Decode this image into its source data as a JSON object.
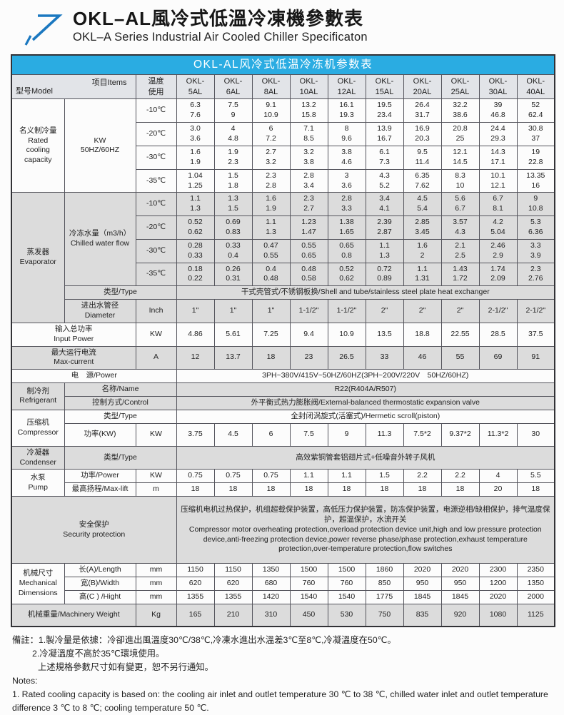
{
  "header": {
    "title_cn": "OKL–AL風冷式低溫冷凍機參數表",
    "title_en": "OKL–A Series Industrial Air Cooled Chiller Specificaton"
  },
  "colors": {
    "title_bar": "#2aace2",
    "header_bg": "#e2e4e8",
    "row_gray": "#dcdcdc",
    "arrow_blue": "#1b78c0"
  },
  "table": {
    "rows": [
      {
        "c": "title-row",
        "cells": [
          {
            "t": "OKL-AL风冷式低温冷冻机参数表",
            "cs": 13,
            "n": "table-title"
          }
        ]
      },
      {
        "c": "head-row",
        "cells": [
          {
            "t": "型号Model\n项目Items",
            "cs": 2,
            "c": "corner",
            "n": "corner-cell"
          },
          {
            "t": "温度\n使用",
            "n": "temp-use-header"
          },
          {
            "t": "OKL-\n5AL",
            "n": "model-header"
          },
          {
            "t": "OKL-\n6AL",
            "n": "model-header"
          },
          {
            "t": "OKL-\n8AL",
            "n": "model-header"
          },
          {
            "t": "OKL-\n10AL",
            "n": "model-header"
          },
          {
            "t": "OKL-\n12AL",
            "n": "model-header"
          },
          {
            "t": "OKL-\n15AL",
            "n": "model-header"
          },
          {
            "t": "OKL-\n20AL",
            "n": "model-header"
          },
          {
            "t": "OKL-\n25AL",
            "n": "model-header"
          },
          {
            "t": "OKL-\n30AL",
            "n": "model-header"
          },
          {
            "t": "OKL-\n40AL",
            "n": "model-header"
          }
        ]
      },
      {
        "c": "",
        "cells": [
          {
            "t": "名义制冷量\nRated\ncooling\ncapacity",
            "rs": 4,
            "n": "group-label"
          },
          {
            "t": "KW\n50HZ/60HZ",
            "rs": 4,
            "n": "item-label"
          },
          {
            "t": "-10℃",
            "n": "temp-label"
          },
          {
            "t": "6.3\n7.6"
          },
          {
            "t": "7.5\n9"
          },
          {
            "t": "9.1\n10.9"
          },
          {
            "t": "13.2\n15.8"
          },
          {
            "t": "16.1\n19.3"
          },
          {
            "t": "19.5\n23.4"
          },
          {
            "t": "26.4\n31.7"
          },
          {
            "t": "32.2\n38.6"
          },
          {
            "t": "39\n46.8"
          },
          {
            "t": "52\n62.4"
          }
        ]
      },
      {
        "c": "",
        "cells": [
          {
            "t": "-20℃",
            "n": "temp-label"
          },
          {
            "t": "3.0\n3.6"
          },
          {
            "t": "4\n4.8"
          },
          {
            "t": "6\n7.2"
          },
          {
            "t": "7.1\n8.5"
          },
          {
            "t": "8\n9.6"
          },
          {
            "t": "13.9\n16.7"
          },
          {
            "t": "16.9\n20.3"
          },
          {
            "t": "20.8\n25"
          },
          {
            "t": "24.4\n29.3"
          },
          {
            "t": "30.8\n37"
          }
        ]
      },
      {
        "c": "",
        "cells": [
          {
            "t": "-30℃",
            "n": "temp-label"
          },
          {
            "t": "1.6\n1.9"
          },
          {
            "t": "1.9\n2.3"
          },
          {
            "t": "2.7\n3.2"
          },
          {
            "t": "3.2\n3.8"
          },
          {
            "t": "3.8\n4.6"
          },
          {
            "t": "6.1\n7.3"
          },
          {
            "t": "9.5\n11.4"
          },
          {
            "t": "12.1\n14.5"
          },
          {
            "t": "14.3\n17.1"
          },
          {
            "t": "19\n22.8"
          }
        ]
      },
      {
        "c": "",
        "cells": [
          {
            "t": "-35℃",
            "n": "temp-label"
          },
          {
            "t": "1.04\n1.25"
          },
          {
            "t": "1.5\n1.8"
          },
          {
            "t": "2.3\n2.8"
          },
          {
            "t": "2.8\n3.4"
          },
          {
            "t": "3\n3.6"
          },
          {
            "t": "4.3\n5.2"
          },
          {
            "t": "6.35\n7.62"
          },
          {
            "t": "8.3\n10"
          },
          {
            "t": "10.1\n12.1"
          },
          {
            "t": "13.35\n16"
          }
        ]
      },
      {
        "c": "gray",
        "cells": [
          {
            "t": "蒸发器\nEvaporator",
            "rs": 6,
            "n": "group-label"
          },
          {
            "t": "冷冻水量（m3/h）\nChilled water flow",
            "rs": 4,
            "n": "item-label"
          },
          {
            "t": "-10℃",
            "n": "temp-label"
          },
          {
            "t": "1.1\n1.3"
          },
          {
            "t": "1.3\n1.5"
          },
          {
            "t": "1.6\n1.9"
          },
          {
            "t": "2.3\n2.7"
          },
          {
            "t": "2.8\n3.3"
          },
          {
            "t": "3.4\n4.1"
          },
          {
            "t": "4.5\n5.4"
          },
          {
            "t": "5.6\n6.7"
          },
          {
            "t": "6.7\n8.1"
          },
          {
            "t": "9\n10.8"
          }
        ]
      },
      {
        "c": "gray",
        "cells": [
          {
            "t": "-20℃",
            "n": "temp-label"
          },
          {
            "t": "0.52\n0.62"
          },
          {
            "t": "0.69\n0.83"
          },
          {
            "t": "1.1\n1.3"
          },
          {
            "t": "1.23\n1.47"
          },
          {
            "t": "1.38\n1.65"
          },
          {
            "t": "2.39\n2.87"
          },
          {
            "t": "2.85\n3.45"
          },
          {
            "t": "3.57\n4.3"
          },
          {
            "t": "4.2\n5.04"
          },
          {
            "t": "5.3\n6.36"
          }
        ]
      },
      {
        "c": "gray",
        "cells": [
          {
            "t": "-30℃",
            "n": "temp-label"
          },
          {
            "t": "0.28\n0.33"
          },
          {
            "t": "0.33\n0.4"
          },
          {
            "t": "0.47\n0.55"
          },
          {
            "t": "0.55\n0.65"
          },
          {
            "t": "0.65\n0.8"
          },
          {
            "t": "1.1\n1.3"
          },
          {
            "t": "1.6\n2"
          },
          {
            "t": "2.1\n2.5"
          },
          {
            "t": "2.46\n2.9"
          },
          {
            "t": "3.3\n3.9"
          }
        ]
      },
      {
        "c": "gray",
        "cells": [
          {
            "t": "-35℃",
            "n": "temp-label"
          },
          {
            "t": "0.18\n0.22"
          },
          {
            "t": "0.26\n0.31"
          },
          {
            "t": "0.4\n0.48"
          },
          {
            "t": "0.48\n0.58"
          },
          {
            "t": "0.52\n0.62"
          },
          {
            "t": "0.72\n0.89"
          },
          {
            "t": "1.1\n1.31"
          },
          {
            "t": "1.43\n1.72"
          },
          {
            "t": "1.74\n2.09"
          },
          {
            "t": "2.3\n2.76"
          }
        ]
      },
      {
        "c": "gray",
        "cells": [
          {
            "t": "类型/Type",
            "cs": 2,
            "n": "item-label"
          },
          {
            "t": "干式壳管式/不锈钢板换/Shell and tube/stainless steel plate heat exchanger",
            "cs": 10,
            "n": "span-value"
          }
        ]
      },
      {
        "c": "gray tall",
        "cells": [
          {
            "t": "进出水管径\nDiameter",
            "n": "item-label"
          },
          {
            "t": "Inch",
            "n": "unit-label"
          },
          {
            "t": "1\""
          },
          {
            "t": "1\""
          },
          {
            "t": "1\""
          },
          {
            "t": "1-1/2\""
          },
          {
            "t": "1-1/2\""
          },
          {
            "t": "2\""
          },
          {
            "t": "2\""
          },
          {
            "t": "2\""
          },
          {
            "t": "2-1/2\""
          },
          {
            "t": "2-1/2\""
          }
        ]
      },
      {
        "c": "tall",
        "cells": [
          {
            "t": "输入总功率\nInput Power",
            "cs": 2,
            "n": "item-label"
          },
          {
            "t": "KW",
            "n": "unit-label"
          },
          {
            "t": "4.86"
          },
          {
            "t": "5.61"
          },
          {
            "t": "7.25"
          },
          {
            "t": "9.4"
          },
          {
            "t": "10.9"
          },
          {
            "t": "13.5"
          },
          {
            "t": "18.8"
          },
          {
            "t": "22.55"
          },
          {
            "t": "28.5"
          },
          {
            "t": "37.5"
          }
        ]
      },
      {
        "c": "gray tall",
        "cells": [
          {
            "t": "最大运行电流\nMax-current",
            "cs": 2,
            "n": "item-label"
          },
          {
            "t": "A",
            "n": "unit-label"
          },
          {
            "t": "12"
          },
          {
            "t": "13.7"
          },
          {
            "t": "18"
          },
          {
            "t": "23"
          },
          {
            "t": "26.5"
          },
          {
            "t": "33"
          },
          {
            "t": "46"
          },
          {
            "t": "55"
          },
          {
            "t": "69"
          },
          {
            "t": "91"
          }
        ]
      },
      {
        "c": "",
        "cells": [
          {
            "t": "电　源/Power",
            "cs": 3,
            "n": "item-label"
          },
          {
            "t": "3PH~380V/415V~50HZ/60HZ(3PH~200V/220V　50HZ/60HZ)",
            "cs": 10,
            "n": "span-value"
          }
        ]
      },
      {
        "c": "gray",
        "cells": [
          {
            "t": "制冷剂\nRefrigerant",
            "rs": 2,
            "n": "group-label"
          },
          {
            "t": "名称/Name",
            "cs": 2,
            "n": "item-label"
          },
          {
            "t": "R22(R404A/R507)",
            "cs": 10,
            "n": "span-value"
          }
        ]
      },
      {
        "c": "gray",
        "cells": [
          {
            "t": "控制方式/Control",
            "cs": 2,
            "n": "item-label"
          },
          {
            "t": "外平衡式热力膨胀阀/External-balanced thermostatic expansion valve",
            "cs": 10,
            "n": "span-value"
          }
        ]
      },
      {
        "c": "",
        "cells": [
          {
            "t": "压缩机\nCompressor",
            "rs": 2,
            "n": "group-label"
          },
          {
            "t": "类型/Type",
            "cs": 2,
            "n": "item-label"
          },
          {
            "t": "全封闭涡旋式(活塞式)/Hermetic scroll(piston)",
            "cs": 10,
            "n": "span-value"
          }
        ]
      },
      {
        "c": "tall",
        "cells": [
          {
            "t": "功率(KW)",
            "n": "item-label"
          },
          {
            "t": "KW",
            "n": "unit-label"
          },
          {
            "t": "3.75"
          },
          {
            "t": "4.5"
          },
          {
            "t": "6"
          },
          {
            "t": "7.5"
          },
          {
            "t": "9"
          },
          {
            "t": "11.3"
          },
          {
            "t": "7.5*2"
          },
          {
            "t": "9.37*2"
          },
          {
            "t": "11.3*2"
          },
          {
            "t": "30"
          }
        ]
      },
      {
        "c": "gray tall",
        "cells": [
          {
            "t": "冷凝器\nCondenser",
            "n": "group-label"
          },
          {
            "t": "类型/Type",
            "cs": 2,
            "n": "item-label"
          },
          {
            "t": "高效紫铜管套铝翅片式+低噪音外转子风机",
            "cs": 10,
            "n": "span-value"
          }
        ]
      },
      {
        "c": "",
        "cells": [
          {
            "t": "水泵\nPump",
            "rs": 2,
            "n": "group-label"
          },
          {
            "t": "功率/Power",
            "n": "item-label"
          },
          {
            "t": "KW",
            "n": "unit-label"
          },
          {
            "t": "0.75"
          },
          {
            "t": "0.75"
          },
          {
            "t": "0.75"
          },
          {
            "t": "1.1"
          },
          {
            "t": "1.1"
          },
          {
            "t": "1.5"
          },
          {
            "t": "2.2"
          },
          {
            "t": "2.2"
          },
          {
            "t": "4"
          },
          {
            "t": "5.5"
          }
        ]
      },
      {
        "c": "",
        "cells": [
          {
            "t": "最高扬程/Max-lift",
            "n": "item-label"
          },
          {
            "t": "m",
            "n": "unit-label"
          },
          {
            "t": "18"
          },
          {
            "t": "18"
          },
          {
            "t": "18"
          },
          {
            "t": "18"
          },
          {
            "t": "18"
          },
          {
            "t": "18"
          },
          {
            "t": "18"
          },
          {
            "t": "18"
          },
          {
            "t": "20"
          },
          {
            "t": "18"
          }
        ]
      },
      {
        "c": "gray sec",
        "cells": [
          {
            "t": "安全保护\nSecurity protection",
            "cs": 3,
            "n": "group-label"
          },
          {
            "t": "压缩机电机过热保护，机组超载保护装置，高低压力保护装置，防冻保护装置，电源逆相/缺相保护，排气温度保护，超温保护，水流开关\n Compressor motor overheating protection,overload protection device unit,high and low pressure protection device,anti-freezing protection device,power reverse phase/phase protection,exhaust temperature protection,over-temperature protection,flow switches",
            "cs": 10,
            "c": "left",
            "n": "protection-text"
          }
        ]
      },
      {
        "c": "",
        "cells": [
          {
            "t": "机械尺寸\nMechanical\nDimensions",
            "rs": 3,
            "n": "group-label"
          },
          {
            "t": "长(A)/Length",
            "n": "item-label"
          },
          {
            "t": "mm",
            "n": "unit-label"
          },
          {
            "t": "1150"
          },
          {
            "t": "1150"
          },
          {
            "t": "1350"
          },
          {
            "t": "1500"
          },
          {
            "t": "1500"
          },
          {
            "t": "1860"
          },
          {
            "t": "2020"
          },
          {
            "t": "2020"
          },
          {
            "t": "2300"
          },
          {
            "t": "2350"
          }
        ]
      },
      {
        "c": "",
        "cells": [
          {
            "t": "宽(B)/Width",
            "n": "item-label"
          },
          {
            "t": "mm",
            "n": "unit-label"
          },
          {
            "t": "620"
          },
          {
            "t": "620"
          },
          {
            "t": "680"
          },
          {
            "t": "760"
          },
          {
            "t": "760"
          },
          {
            "t": "850"
          },
          {
            "t": "950"
          },
          {
            "t": "950"
          },
          {
            "t": "1200"
          },
          {
            "t": "1350"
          }
        ]
      },
      {
        "c": "",
        "cells": [
          {
            "t": "高(C ) /Hight",
            "n": "item-label"
          },
          {
            "t": "mm",
            "n": "unit-label"
          },
          {
            "t": "1355"
          },
          {
            "t": "1355"
          },
          {
            "t": "1420"
          },
          {
            "t": "1540"
          },
          {
            "t": "1540"
          },
          {
            "t": "1775"
          },
          {
            "t": "1845"
          },
          {
            "t": "1845"
          },
          {
            "t": "2020"
          },
          {
            "t": "2000"
          }
        ]
      },
      {
        "c": "gray tall",
        "cells": [
          {
            "t": "机械重量/Machinery Weight",
            "cs": 2,
            "n": "item-label"
          },
          {
            "t": "Kg",
            "n": "unit-label"
          },
          {
            "t": "165"
          },
          {
            "t": "210"
          },
          {
            "t": "310"
          },
          {
            "t": "450"
          },
          {
            "t": "530"
          },
          {
            "t": "750"
          },
          {
            "t": "835"
          },
          {
            "t": "920"
          },
          {
            "t": "1080"
          },
          {
            "t": "1125"
          }
        ]
      }
    ]
  },
  "notes": {
    "lines": [
      {
        "text": "備註：1.製冷量是依據：冷卻進出風溫度30℃/38℃,冷凍水進出水溫差3℃至8℃,冷凝溫度在50℃。"
      },
      {
        "text": "2.冷凝溫度不高於35℃環境使用。",
        "ind": 1
      },
      {
        "text": "上述規格參數尺寸如有變更，恕不另行通知。",
        "ind": 2
      },
      {
        "text": "Notes:"
      },
      {
        "text": "1. Rated cooling capacity is based on: the cooling air inlet and outlet temperature 30 ℃ to 38 ℃, chilled water inlet and outlet temperature difference 3 ℃ to 8 ℃; cooling temperature 50 ℃."
      }
    ]
  }
}
